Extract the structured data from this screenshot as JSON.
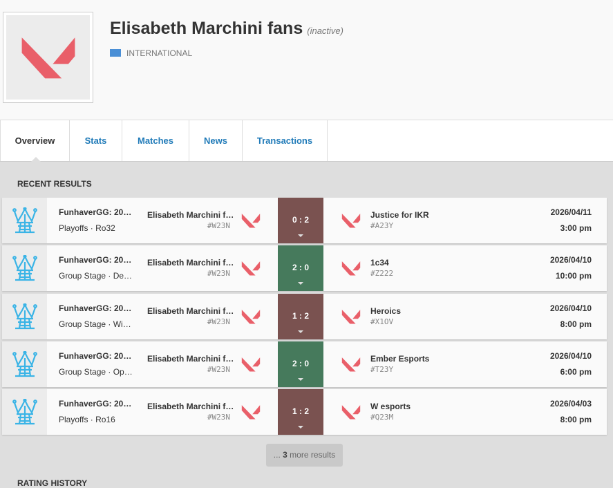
{
  "header": {
    "title": "Elisabeth Marchini fans",
    "status": "(inactive)",
    "region": "INTERNATIONAL"
  },
  "tabs": [
    "Overview",
    "Stats",
    "Matches",
    "News",
    "Transactions"
  ],
  "active_tab": 0,
  "recent_results": {
    "title": "RECENT RESULTS",
    "matches": [
      {
        "event": "FunhaverGG: 20…",
        "stage": "Playoffs · Ro32",
        "team": "Elisabeth Marchini f…",
        "team_tag": "#W23N",
        "score": "0 : 2",
        "color": "#7a5250",
        "opponent": "Justice for IKR",
        "opponent_tag": "#A23Y",
        "date": "2026/04/11",
        "time": "3:00 pm"
      },
      {
        "event": "FunhaverGG: 20…",
        "stage": "Group Stage · De…",
        "team": "Elisabeth Marchini f…",
        "team_tag": "#W23N",
        "score": "2 : 0",
        "color": "#467a5c",
        "opponent": "1c34",
        "opponent_tag": "#Z222",
        "date": "2026/04/10",
        "time": "10:00 pm"
      },
      {
        "event": "FunhaverGG: 20…",
        "stage": "Group Stage · Wi…",
        "team": "Elisabeth Marchini f…",
        "team_tag": "#W23N",
        "score": "1 : 2",
        "color": "#7a5250",
        "opponent": "Heroics",
        "opponent_tag": "#X1OV",
        "date": "2026/04/10",
        "time": "8:00 pm"
      },
      {
        "event": "FunhaverGG: 20…",
        "stage": "Group Stage · Op…",
        "team": "Elisabeth Marchini f…",
        "team_tag": "#W23N",
        "score": "2 : 0",
        "color": "#467a5c",
        "opponent": "Ember Esports",
        "opponent_tag": "#T23Y",
        "date": "2026/04/10",
        "time": "6:00 pm"
      },
      {
        "event": "FunhaverGG: 20…",
        "stage": "Playoffs · Ro16",
        "team": "Elisabeth Marchini f…",
        "team_tag": "#W23N",
        "score": "1 : 2",
        "color": "#7a5250",
        "opponent": "W esports",
        "opponent_tag": "#Q23M",
        "date": "2026/04/03",
        "time": "8:00 pm"
      }
    ],
    "more": {
      "prefix": "...",
      "count": 3,
      "suffix": "more results"
    }
  },
  "rating_history": {
    "title": "RATING HISTORY"
  }
}
